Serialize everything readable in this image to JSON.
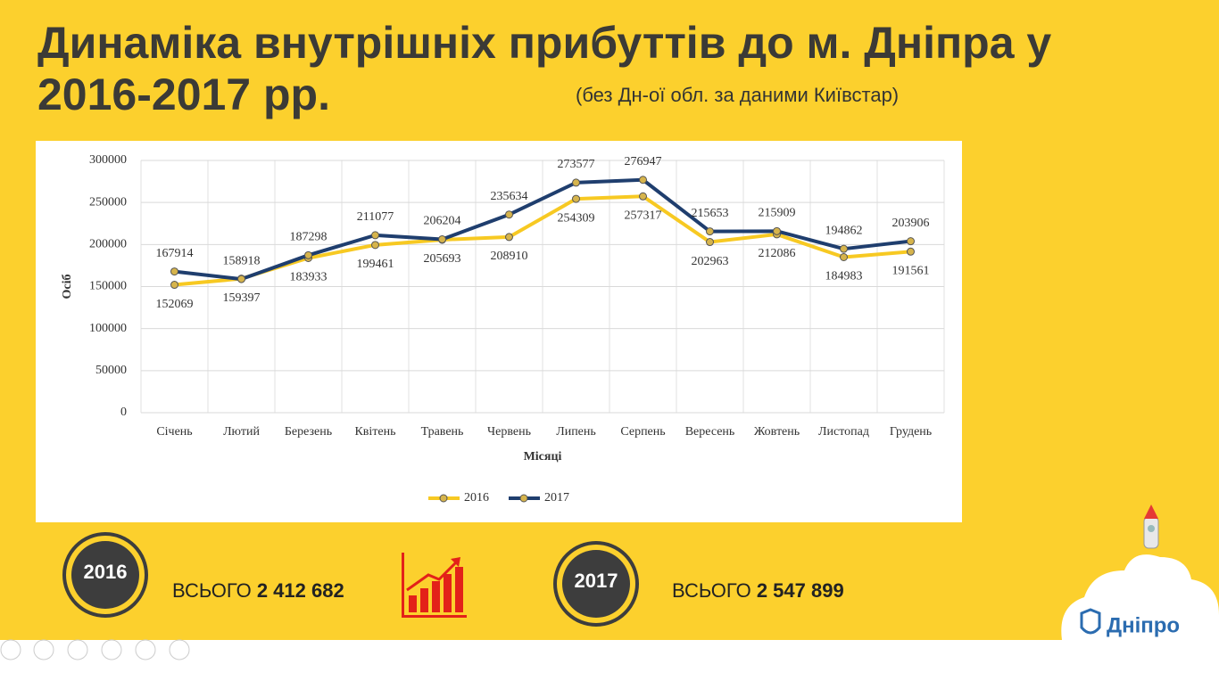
{
  "slide": {
    "title_line1": "Динаміка внутрішніх прибуттів до м. Дніпра у",
    "title_line2": "2016-2017 рр.",
    "subtitle": "(без Дн-ої обл. за даними Київстар)",
    "totals": [
      {
        "year": "2016",
        "label": "ВСЬОГО",
        "value": "2 412 682"
      },
      {
        "year": "2017",
        "label": "ВСЬОГО",
        "value": "2 547 899"
      }
    ],
    "logo": "Дніпро"
  },
  "chart_data": {
    "type": "line",
    "ylabel": "Осіб",
    "xlabel": "Місяці",
    "categories": [
      "Січень",
      "Лютий",
      "Березень",
      "Квітень",
      "Травень",
      "Червень",
      "Липень",
      "Серпень",
      "Вересень",
      "Жовтень",
      "Листопад",
      "Грудень"
    ],
    "series": [
      {
        "name": "2016",
        "color": "#f7c922",
        "values": [
          152069,
          159397,
          183933,
          199461,
          205693,
          208910,
          254309,
          257317,
          202963,
          212086,
          184983,
          191561
        ]
      },
      {
        "name": "2017",
        "color": "#1f3e6e",
        "values": [
          167914,
          158918,
          187298,
          211077,
          206204,
          235634,
          273577,
          276947,
          215653,
          215909,
          194862,
          203906
        ]
      }
    ],
    "marker_color": "#d6b44c",
    "ylim": [
      0,
      300000
    ],
    "yticks": [
      0,
      50000,
      100000,
      150000,
      200000,
      250000,
      300000
    ],
    "grid": true,
    "legend": "bottom"
  }
}
